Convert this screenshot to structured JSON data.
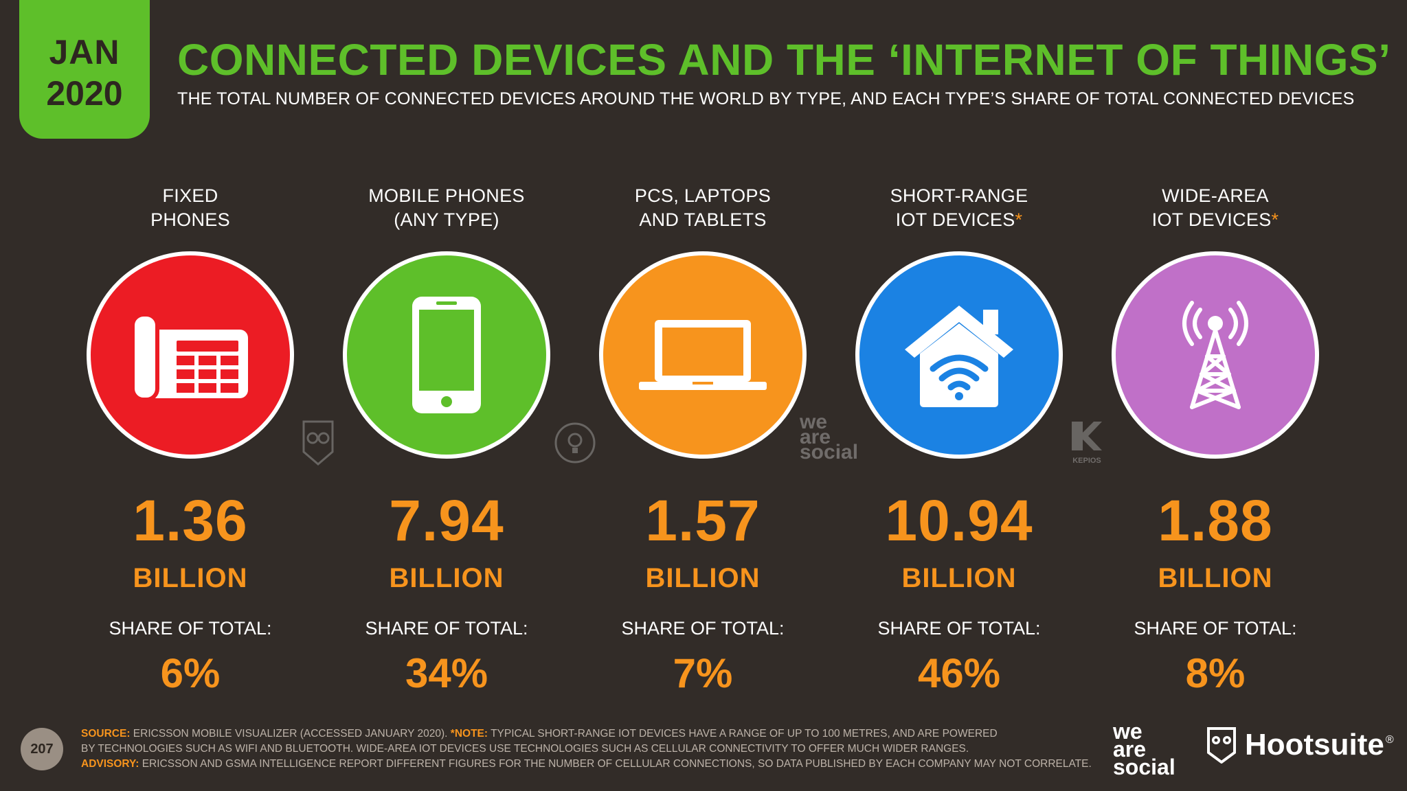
{
  "badge": {
    "month": "JAN",
    "year": "2020"
  },
  "header": {
    "title": "CONNECTED DEVICES AND THE ‘INTERNET OF THINGS’",
    "subtitle": "THE TOTAL NUMBER OF CONNECTED DEVICES AROUND THE WORLD BY TYPE, AND EACH TYPE’S SHARE OF TOTAL CONNECTED DEVICES"
  },
  "colors": {
    "background": "#322c28",
    "accent_green": "#5ebf2a",
    "accent_orange": "#f7941d",
    "fixed": "#ec1c24",
    "mobile": "#5ebf2a",
    "pcs": "#f7941d",
    "short_iot": "#1b82e3",
    "wide_iot": "#c070c8"
  },
  "devices": [
    {
      "label_line1": "FIXED",
      "label_line2": "PHONES",
      "asterisk": "",
      "icon": "desk-phone-icon",
      "value": "1.36",
      "unit": "BILLION",
      "share_label": "SHARE OF TOTAL:",
      "share": "6%"
    },
    {
      "label_line1": "MOBILE PHONES",
      "label_line2": "(ANY TYPE)",
      "asterisk": "",
      "icon": "smartphone-icon",
      "value": "7.94",
      "unit": "BILLION",
      "share_label": "SHARE OF TOTAL:",
      "share": "34%"
    },
    {
      "label_line1": "PCS, LAPTOPS",
      "label_line2": "AND TABLETS",
      "asterisk": "",
      "icon": "laptop-icon",
      "value": "1.57",
      "unit": "BILLION",
      "share_label": "SHARE OF TOTAL:",
      "share": "7%"
    },
    {
      "label_line1": "SHORT-RANGE",
      "label_line2": "IOT DEVICES",
      "asterisk": "*",
      "icon": "smart-home-wifi-icon",
      "value": "10.94",
      "unit": "BILLION",
      "share_label": "SHARE OF TOTAL:",
      "share": "46%"
    },
    {
      "label_line1": "WIDE-AREA",
      "label_line2": "IOT DEVICES",
      "asterisk": "*",
      "icon": "cell-tower-icon",
      "value": "1.88",
      "unit": "BILLION",
      "share_label": "SHARE OF TOTAL:",
      "share": "8%"
    }
  ],
  "watermarks": {
    "was": [
      "we",
      "are",
      "social"
    ],
    "kepios": "KEPIOS"
  },
  "footer": {
    "page": "207",
    "source_key": "SOURCE:",
    "source_text": "ERICSSON MOBILE VISUALIZER (ACCESSED JANUARY 2020).",
    "note_key": "*NOTE:",
    "note_text": "TYPICAL SHORT-RANGE IOT DEVICES HAVE A RANGE OF UP TO 100 METRES, AND ARE POWERED",
    "note_text2": "BY TECHNOLOGIES SUCH AS WIFI AND BLUETOOTH. WIDE-AREA IOT DEVICES USE TECHNOLOGIES SUCH AS CELLULAR CONNECTIVITY TO OFFER MUCH WIDER RANGES.",
    "advisory_key": "ADVISORY:",
    "advisory_text": "ERICSSON AND GSMA INTELLIGENCE REPORT DIFFERENT FIGURES FOR THE NUMBER OF CELLULAR CONNECTIONS, SO DATA PUBLISHED BY EACH COMPANY MAY NOT CORRELATE."
  },
  "brands": {
    "was": [
      "we",
      "are",
      "social"
    ],
    "hootsuite": "Hootsuite",
    "reg": "®"
  }
}
